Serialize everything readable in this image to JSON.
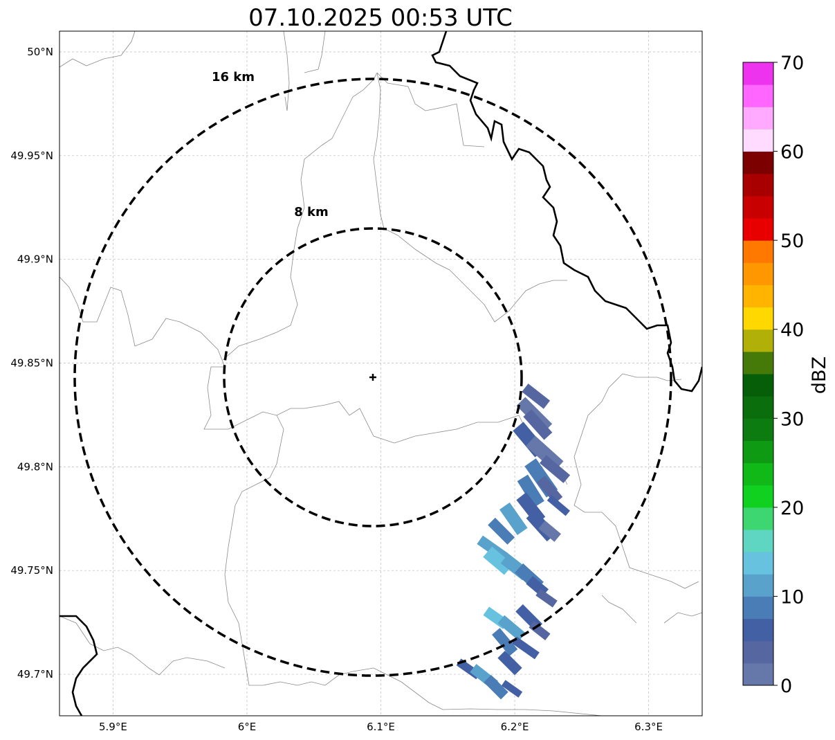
{
  "title": "07.10.2025 00:53 UTC",
  "map": {
    "lon_range": [
      5.86,
      6.34
    ],
    "lat_range": [
      49.68,
      50.01
    ],
    "center": {
      "lon": 6.095,
      "lat": 49.843
    },
    "lon_ticks": [
      {
        "value": 5.9,
        "label": "5.9°E"
      },
      {
        "value": 6.0,
        "label": "6°E"
      },
      {
        "value": 6.1,
        "label": "6.1°E"
      },
      {
        "value": 6.2,
        "label": "6.2°E"
      },
      {
        "value": 6.3,
        "label": "6.3°E"
      }
    ],
    "lat_ticks": [
      {
        "value": 50.0,
        "label": "50°N"
      },
      {
        "value": 49.95,
        "label": "49.95°N"
      },
      {
        "value": 49.9,
        "label": "49.9°N"
      },
      {
        "value": 49.85,
        "label": "49.85°N"
      },
      {
        "value": 49.8,
        "label": "49.8°N"
      },
      {
        "value": 49.75,
        "label": "49.75°N"
      },
      {
        "value": 49.7,
        "label": "49.7°N"
      }
    ],
    "range_rings": [
      {
        "label": "8 km"
      },
      {
        "label": "16 km"
      }
    ]
  },
  "colorbar": {
    "label": "dBZ",
    "min": 0,
    "max": 70,
    "ticks": [
      "0",
      "10",
      "20",
      "30",
      "40",
      "50",
      "60",
      "70"
    ],
    "colors": [
      "#6677aa",
      "#5566a0",
      "#4460a5",
      "#4a7cb5",
      "#58a2cb",
      "#66c2de",
      "#5ed6c2",
      "#3ed670",
      "#10d020",
      "#10b818",
      "#0e9a12",
      "#0c7c10",
      "#0a6e0c",
      "#065e08",
      "#467a08",
      "#b0b008",
      "#ffd800",
      "#ffb400",
      "#ff9800",
      "#ff7800",
      "#e80000",
      "#c80000",
      "#a80000",
      "#7c0000",
      "#ffdcff",
      "#ffaaff",
      "#ff66ff",
      "#ee33ee"
    ]
  }
}
